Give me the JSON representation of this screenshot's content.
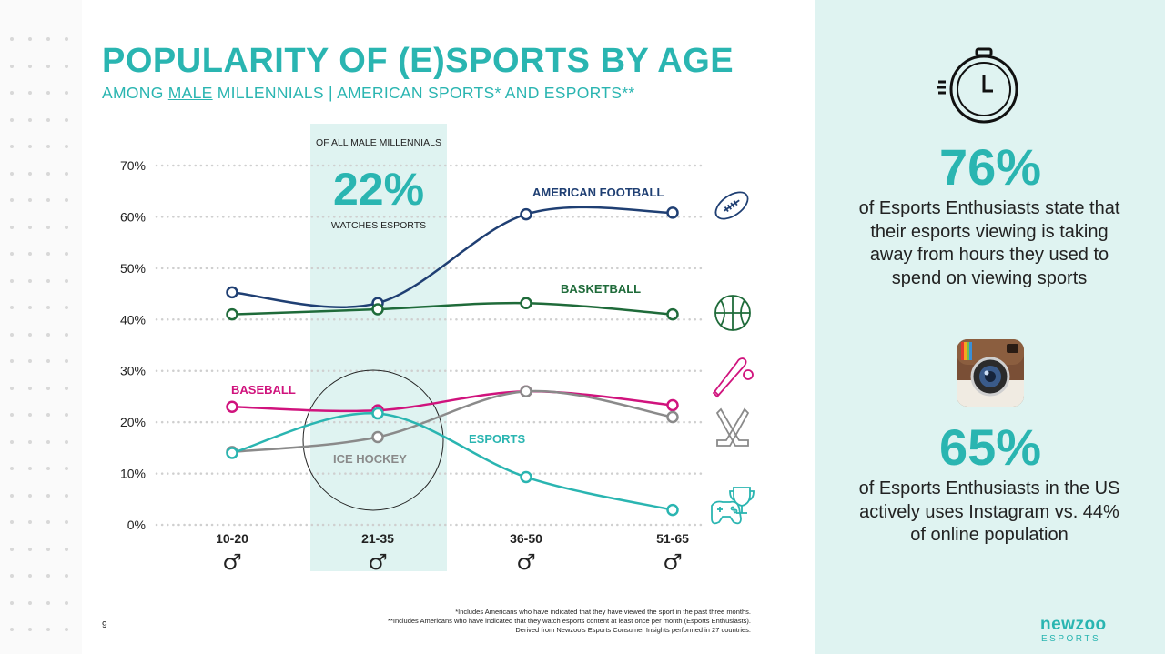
{
  "page": {
    "title": "POPULARITY OF (E)SPORTS BY AGE",
    "subtitle_pre": "AMONG ",
    "subtitle_underlined": "MALE",
    "subtitle_post": " MILLENNIALS | AMERICAN SPORTS* AND ESPORTS**",
    "page_number": "9"
  },
  "highlight": {
    "top_text": "OF ALL MALE MILLENNIALS",
    "value": "22%",
    "bottom_text": "WATCHES ESPORTS"
  },
  "chart_data": {
    "type": "line",
    "categories": [
      "10-20",
      "21-35",
      "36-50",
      "51-65"
    ],
    "category_symbol": "♂",
    "y_ticks": [
      "0%",
      "10%",
      "20%",
      "30%",
      "40%",
      "50%",
      "60%",
      "70%"
    ],
    "ylim": [
      0,
      70
    ],
    "grid": true,
    "series": [
      {
        "name": "AMERICAN FOOTBALL",
        "values": [
          45.3,
          43.2,
          60.5,
          60.8
        ],
        "color": "#1f3f73",
        "icon": "american-football-icon"
      },
      {
        "name": "BASKETBALL",
        "values": [
          41,
          42,
          43.2,
          41
        ],
        "color": "#1f6b3a",
        "icon": "basketball-icon"
      },
      {
        "name": "BASEBALL",
        "values": [
          23,
          22.3,
          26,
          23.3
        ],
        "color": "#d0137d",
        "icon": "baseball-bat-icon"
      },
      {
        "name": "ICE HOCKEY",
        "values": [
          14.2,
          17.1,
          26,
          21
        ],
        "color": "#8a8a8a",
        "icon": "hockey-sticks-icon"
      },
      {
        "name": "ESPORTS",
        "values": [
          14,
          21.7,
          9.3,
          2.9
        ],
        "color": "#2ab5b1",
        "icon": "gamepad-trophy-icon"
      }
    ]
  },
  "stats": [
    {
      "value": "76%",
      "text": "of Esports Enthusiasts state that their esports viewing is taking away from hours they used to spend on viewing sports",
      "icon": "stopwatch-icon"
    },
    {
      "value": "65%",
      "text": "of Esports Enthusiasts in the US actively uses Instagram vs. 44% of online population",
      "icon": "instagram-icon"
    }
  ],
  "footnotes": [
    "*Includes Americans who have indicated that they have viewed the sport in the past three months.",
    "**Includes Americans who have indicated that they watch esports content at least once per month (Esports Enthusiasts).",
    "Derived from Newzoo's Esports Consumer Insights performed in 27 countries."
  ],
  "brand": {
    "name": "newzoo",
    "sub": "ESPORTS"
  },
  "colors": {
    "accent": "#2ab5b1",
    "panel": "#dff3f1"
  }
}
